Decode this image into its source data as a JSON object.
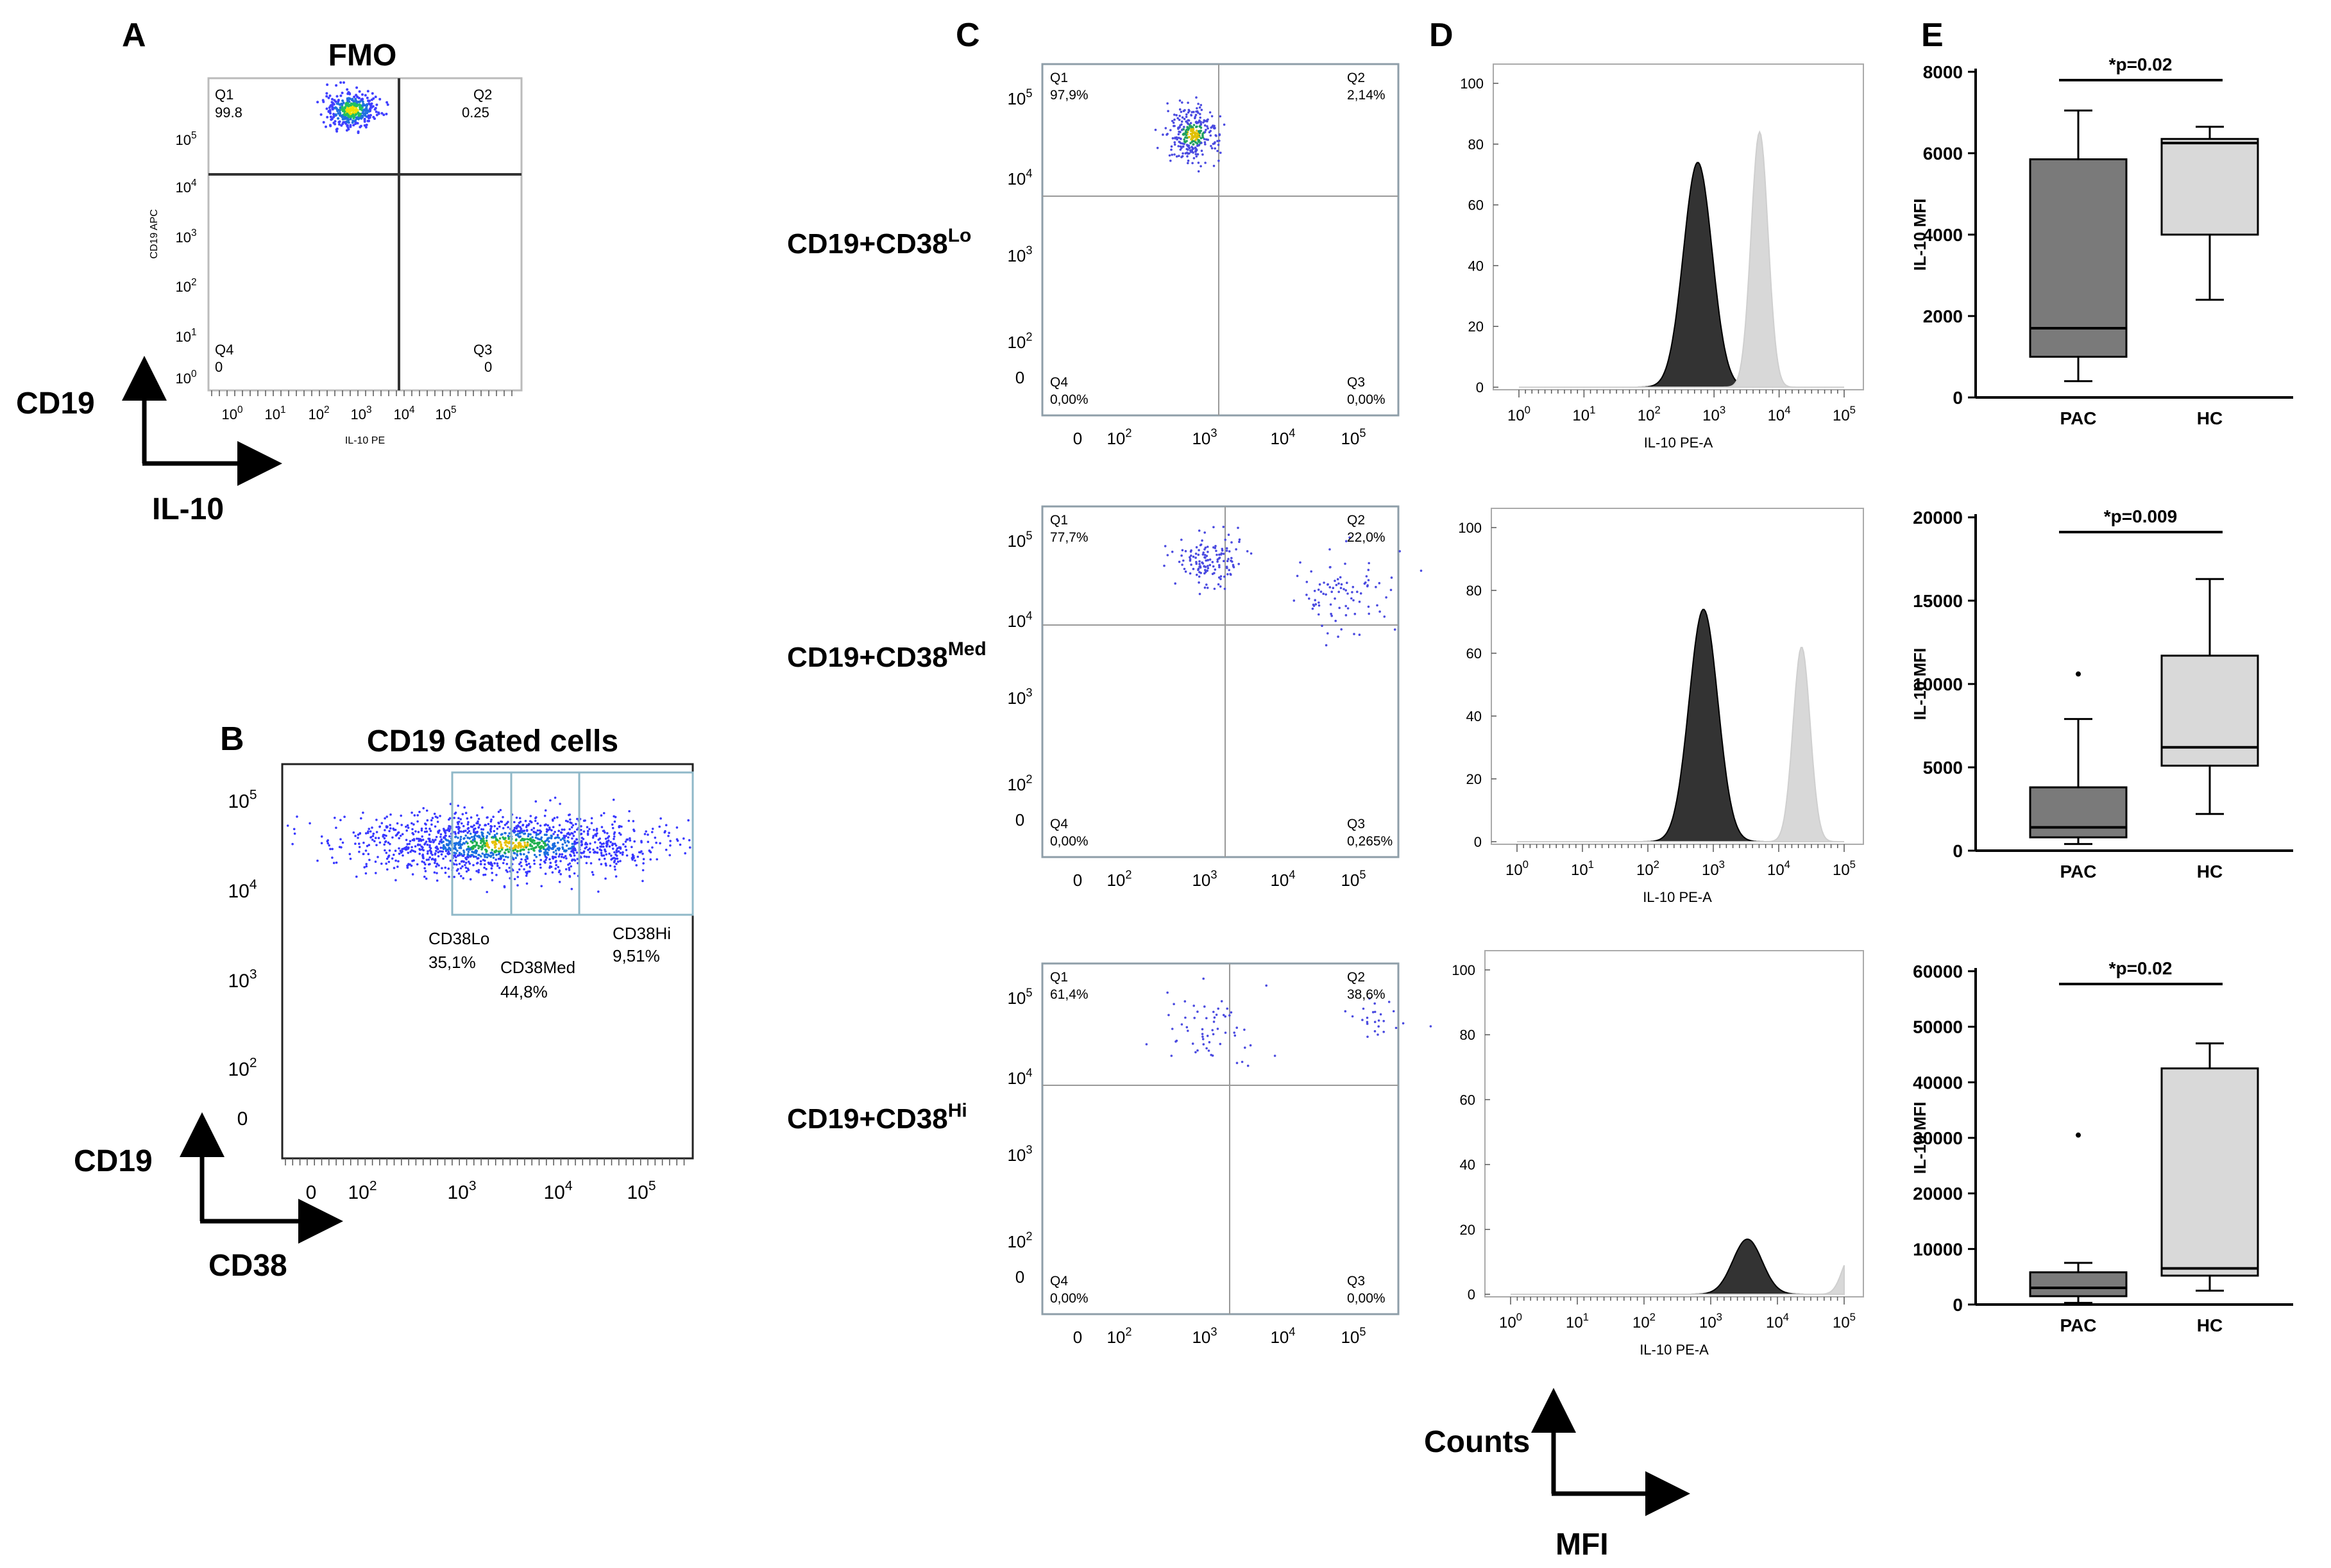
{
  "panel_labels": {
    "a": "A",
    "b": "B",
    "c": "C",
    "d": "D",
    "e": "E"
  },
  "colors": {
    "dark_hist": "#333333",
    "light_hist": "#d8d8d8",
    "pac_box": "#7a7a7a",
    "hc_box": "#d9d9d9",
    "gate_line": "#8fb8c8",
    "dots": "#3a3ad8"
  },
  "panel_a": {
    "title": "FMO",
    "quadrants": [
      {
        "name": "Q1",
        "value": "99.8"
      },
      {
        "name": "Q2",
        "value": "0.25"
      },
      {
        "name": "Q3",
        "value": "0"
      },
      {
        "name": "Q4",
        "value": "0"
      }
    ],
    "ylabel": "CD19 APC",
    "xlabel": "IL-10 PE",
    "yticks": [
      {
        "b": "10",
        "e": "0"
      },
      {
        "b": "10",
        "e": "1"
      },
      {
        "b": "10",
        "e": "2"
      },
      {
        "b": "10",
        "e": "3"
      },
      {
        "b": "10",
        "e": "4"
      },
      {
        "b": "10",
        "e": "5"
      }
    ],
    "xticks": [
      {
        "b": "10",
        "e": "0"
      },
      {
        "b": "10",
        "e": "1"
      },
      {
        "b": "10",
        "e": "2"
      },
      {
        "b": "10",
        "e": "3"
      },
      {
        "b": "10",
        "e": "4"
      },
      {
        "b": "10",
        "e": "5"
      }
    ],
    "axis_y": "CD19",
    "axis_x": "IL-10"
  },
  "panel_b": {
    "title": "CD19 Gated cells",
    "gates": [
      {
        "name": "CD38Lo",
        "value": "35,1%"
      },
      {
        "name": "CD38Med",
        "value": "44,8%"
      },
      {
        "name": "CD38Hi",
        "value": "9,51%"
      }
    ],
    "yticks": [
      {
        "b": "0",
        "e": ""
      },
      {
        "b": "10",
        "e": "2"
      },
      {
        "b": "10",
        "e": "3"
      },
      {
        "b": "10",
        "e": "4"
      },
      {
        "b": "10",
        "e": "5"
      }
    ],
    "xticks": [
      {
        "b": "0",
        "e": ""
      },
      {
        "b": "10",
        "e": "2"
      },
      {
        "b": "10",
        "e": "3"
      },
      {
        "b": "10",
        "e": "4"
      },
      {
        "b": "10",
        "e": "5"
      }
    ],
    "axis_y": "CD19",
    "axis_x": "CD38"
  },
  "panel_c": {
    "rows": [
      {
        "label_main": "CD19+CD38",
        "label_sup": "Lo",
        "quadrants": [
          {
            "name": "Q1",
            "value": "97,9%"
          },
          {
            "name": "Q2",
            "value": "2,14%"
          },
          {
            "name": "Q3",
            "value": "0,00%"
          },
          {
            "name": "Q4",
            "value": "0,00%"
          }
        ]
      },
      {
        "label_main": "CD19+CD38",
        "label_sup": "Med",
        "quadrants": [
          {
            "name": "Q1",
            "value": "77,7%"
          },
          {
            "name": "Q2",
            "value": "22,0%"
          },
          {
            "name": "Q3",
            "value": "0,265%"
          },
          {
            "name": "Q4",
            "value": "0,00%"
          }
        ]
      },
      {
        "label_main": "CD19+CD38",
        "label_sup": "Hi",
        "quadrants": [
          {
            "name": "Q1",
            "value": "61,4%"
          },
          {
            "name": "Q2",
            "value": "38,6%"
          },
          {
            "name": "Q3",
            "value": "0,00%"
          },
          {
            "name": "Q4",
            "value": "0,00%"
          }
        ]
      }
    ],
    "yticks": [
      {
        "b": "0",
        "e": ""
      },
      {
        "b": "10",
        "e": "2"
      },
      {
        "b": "10",
        "e": "3"
      },
      {
        "b": "10",
        "e": "4"
      },
      {
        "b": "10",
        "e": "5"
      }
    ],
    "xticks": [
      {
        "b": "0",
        "e": ""
      },
      {
        "b": "10",
        "e": "2"
      },
      {
        "b": "10",
        "e": "3"
      },
      {
        "b": "10",
        "e": "4"
      },
      {
        "b": "10",
        "e": "5"
      }
    ]
  },
  "panel_d": {
    "xlabel": "IL-10 PE-A",
    "yticks": [
      "0",
      "20",
      "40",
      "60",
      "80",
      "100"
    ],
    "xticks": [
      {
        "b": "10",
        "e": "0"
      },
      {
        "b": "10",
        "e": "1"
      },
      {
        "b": "10",
        "e": "2"
      },
      {
        "b": "10",
        "e": "3"
      },
      {
        "b": "10",
        "e": "4"
      },
      {
        "b": "10",
        "e": "5"
      }
    ],
    "axis_y": "Counts",
    "axis_x": "MFI"
  },
  "chart_data": [
    {
      "type": "histogram",
      "title": "CD19+CD38Lo",
      "xlabel": "IL-10 PE-A",
      "ylabel": "Counts",
      "ylim": [
        0,
        100
      ],
      "xscale": "log",
      "series": [
        {
          "name": "dark",
          "peak_log10": 2.75,
          "peak_count": 74
        },
        {
          "name": "light",
          "peak_log10": 3.7,
          "peak_count": 84
        }
      ]
    },
    {
      "type": "histogram",
      "title": "CD19+CD38Med",
      "xlabel": "IL-10 PE-A",
      "ylabel": "Counts",
      "ylim": [
        0,
        100
      ],
      "xscale": "log",
      "series": [
        {
          "name": "dark",
          "peak_log10": 2.85,
          "peak_count": 74
        },
        {
          "name": "light",
          "peak_log10": 4.35,
          "peak_count": 62
        }
      ]
    },
    {
      "type": "histogram",
      "title": "CD19+CD38Hi",
      "xlabel": "IL-10 PE-A",
      "ylabel": "Counts",
      "ylim": [
        0,
        100
      ],
      "xscale": "log",
      "series": [
        {
          "name": "dark",
          "peak_log10": 3.55,
          "peak_count": 17
        },
        {
          "name": "light",
          "peak_log10": 5.1,
          "peak_count": 12
        }
      ]
    },
    {
      "type": "box",
      "ylabel": "IL-10 MFI",
      "categories": [
        "PAC",
        "HC"
      ],
      "ylim": [
        0,
        8000
      ],
      "yticks": [
        "0",
        "2000",
        "4000",
        "6000",
        "8000"
      ],
      "annotation": "*p=0.02",
      "series": [
        {
          "name": "PAC",
          "min": 400,
          "q1": 1000,
          "median": 1700,
          "q3": 5850,
          "max": 7050,
          "outliers": []
        },
        {
          "name": "HC",
          "min": 2400,
          "q1": 4000,
          "median": 6250,
          "q3": 6350,
          "max": 6650,
          "outliers": []
        }
      ]
    },
    {
      "type": "box",
      "ylabel": "IL-10 MFI",
      "categories": [
        "PAC",
        "HC"
      ],
      "ylim": [
        0,
        20000
      ],
      "yticks": [
        "0",
        "5000",
        "10000",
        "15000",
        "20000"
      ],
      "annotation": "*p=0.009",
      "series": [
        {
          "name": "PAC",
          "min": 400,
          "q1": 800,
          "median": 1400,
          "q3": 3800,
          "max": 7900,
          "outliers": [
            10600
          ]
        },
        {
          "name": "HC",
          "min": 2200,
          "q1": 5100,
          "median": 6200,
          "q3": 11700,
          "max": 16300,
          "outliers": []
        }
      ]
    },
    {
      "type": "box",
      "ylabel": "IL-10 MFI",
      "categories": [
        "PAC",
        "HC"
      ],
      "ylim": [
        0,
        60000
      ],
      "yticks": [
        "0",
        "10000",
        "20000",
        "30000",
        "40000",
        "50000",
        "60000"
      ],
      "annotation": "*p=0.02",
      "series": [
        {
          "name": "PAC",
          "min": 300,
          "q1": 1500,
          "median": 3000,
          "q3": 5800,
          "max": 7500,
          "outliers": [
            30500
          ]
        },
        {
          "name": "HC",
          "min": 2500,
          "q1": 5200,
          "median": 6500,
          "q3": 42500,
          "max": 47000,
          "outliers": []
        }
      ]
    }
  ]
}
